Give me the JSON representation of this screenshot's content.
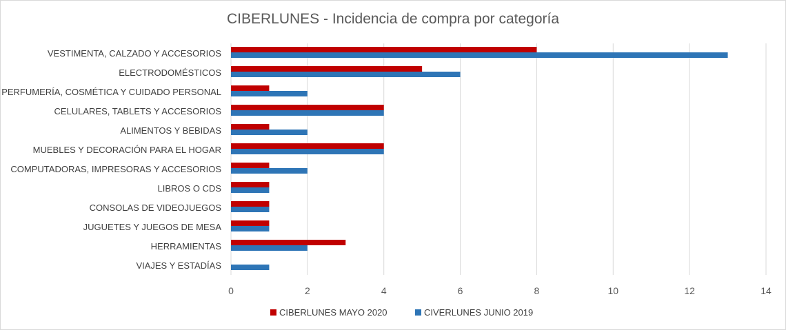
{
  "chart_data": {
    "type": "bar",
    "orientation": "horizontal",
    "title": "CIBERLUNES - Incidencia de compra por categoría",
    "xlabel": "",
    "ylabel": "",
    "xlim": [
      0,
      14
    ],
    "xticks": [
      0,
      2,
      4,
      6,
      8,
      10,
      12,
      14
    ],
    "grid": true,
    "legend_position": "bottom",
    "categories": [
      "VESTIMENTA, CALZADO Y ACCESORIOS",
      "ELECTRODOMÉSTICOS",
      "PERFUMERÍA, COSMÉTICA Y CUIDADO PERSONAL",
      "CELULARES, TABLETS Y ACCESORIOS",
      "ALIMENTOS Y BEBIDAS",
      "MUEBLES Y DECORACIÓN PARA EL HOGAR",
      "COMPUTADORAS, IMPRESORAS Y ACCESORIOS",
      "LIBROS O CDS",
      "CONSOLAS DE VIDEOJUEGOS",
      "JUGUETES Y JUEGOS DE MESA",
      "HERRAMIENTAS",
      "VIAJES Y ESTADÍAS"
    ],
    "series": [
      {
        "name": "CIBERLUNES MAYO 2020",
        "color": "#c00000",
        "values": [
          8,
          5,
          1,
          4,
          1,
          4,
          1,
          1,
          1,
          1,
          3,
          0
        ]
      },
      {
        "name": "CIVERLUNES JUNIO 2019",
        "color": "#2e75b6",
        "values": [
          13,
          6,
          2,
          4,
          2,
          4,
          2,
          1,
          1,
          1,
          2,
          1
        ]
      }
    ]
  }
}
